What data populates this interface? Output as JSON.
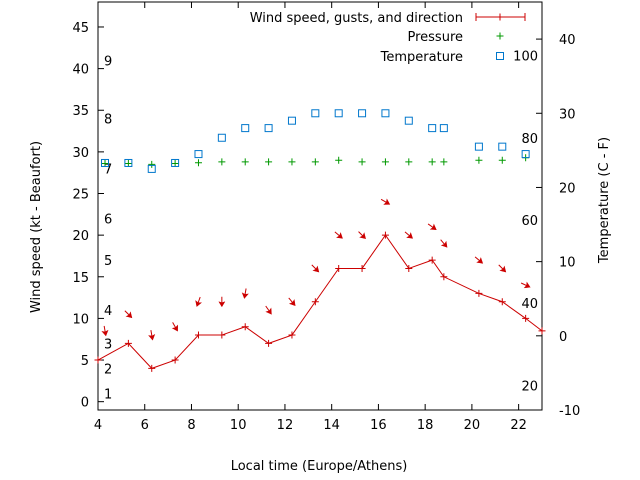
{
  "chart_data": {
    "type": "line",
    "xlabel": "Local time (Europe/Athens)",
    "ylabel_left": "Wind speed (kt - Beaufort)",
    "ylabel_right": "Temperature (C - F)",
    "x_range": [
      4,
      23
    ],
    "x_ticks": [
      4,
      6,
      8,
      10,
      12,
      14,
      16,
      18,
      20,
      22
    ],
    "y_left_range": [
      -1,
      48
    ],
    "y_left_ticks": [
      0,
      5,
      10,
      15,
      20,
      25,
      30,
      35,
      40,
      45
    ],
    "y_right_range": [
      -10,
      45
    ],
    "y_right_ticks": [
      -10,
      0,
      10,
      20,
      30,
      40
    ],
    "beaufort_labels": [
      {
        "label": "1",
        "y": 1
      },
      {
        "label": "2",
        "y": 4
      },
      {
        "label": "3",
        "y": 7
      },
      {
        "label": "4",
        "y": 11
      },
      {
        "label": "5",
        "y": 17
      },
      {
        "label": "6",
        "y": 22
      },
      {
        "label": "7",
        "y": 28
      },
      {
        "label": "8",
        "y": 34
      },
      {
        "label": "9",
        "y": 41
      }
    ],
    "fahrenheit_labels": [
      {
        "label": "20",
        "y": -6.7
      },
      {
        "label": "40",
        "y": 4.4
      },
      {
        "label": "60",
        "y": 15.6
      },
      {
        "label": "80",
        "y": 26.7
      },
      {
        "label": "100",
        "y": 37.8
      }
    ],
    "legend": {
      "wind": "Wind speed, gusts, and direction",
      "pressure": "Pressure",
      "temperature": "Temperature"
    },
    "colors": {
      "wind": "#cc0000",
      "pressure": "#009900",
      "temperature": "#0077cc"
    },
    "series": {
      "wind_speed": {
        "x": [
          4.0,
          5.3,
          6.3,
          7.3,
          8.3,
          9.3,
          10.3,
          11.3,
          12.3,
          13.3,
          14.3,
          15.3,
          16.3,
          17.3,
          18.3,
          18.8,
          20.3,
          21.3,
          22.3,
          23.0
        ],
        "y": [
          5,
          7,
          4,
          5,
          8,
          8,
          9,
          7,
          8,
          12,
          16,
          16,
          20,
          16,
          17,
          15,
          13,
          12,
          10,
          8.5
        ]
      },
      "wind_direction": {
        "x": [
          4.3,
          5.3,
          6.3,
          7.3,
          8.3,
          9.3,
          10.3,
          11.3,
          12.3,
          13.3,
          14.3,
          15.3,
          16.3,
          17.3,
          18.3,
          18.8,
          20.3,
          21.3,
          22.3
        ],
        "y": [
          8.5,
          10.5,
          8.0,
          9.0,
          12.0,
          12.0,
          13.0,
          11.0,
          12.0,
          16.0,
          20.0,
          20.0,
          24.0,
          20.0,
          21.0,
          19.0,
          17.0,
          16.0,
          14.0
        ],
        "angle": [
          80,
          45,
          80,
          60,
          110,
          90,
          100,
          55,
          50,
          45,
          40,
          45,
          30,
          40,
          35,
          50,
          40,
          45,
          25
        ]
      },
      "pressure": {
        "x": [
          4.3,
          5.3,
          6.3,
          7.3,
          8.3,
          9.3,
          10.3,
          11.3,
          12.3,
          13.3,
          14.3,
          15.3,
          16.3,
          17.3,
          18.3,
          18.8,
          20.3,
          21.3,
          22.3
        ],
        "y": [
          28.6,
          28.6,
          28.5,
          28.6,
          28.7,
          28.8,
          28.8,
          28.8,
          28.8,
          28.8,
          29.0,
          28.8,
          28.8,
          28.8,
          28.8,
          28.8,
          29.0,
          29.0,
          29.3
        ]
      },
      "temperature": {
        "x": [
          4.3,
          5.3,
          6.3,
          7.3,
          8.3,
          9.3,
          10.3,
          11.3,
          12.3,
          13.3,
          14.3,
          15.3,
          16.3,
          17.3,
          18.3,
          18.8,
          20.3,
          21.3,
          22.3
        ],
        "y": [
          23.3,
          23.3,
          22.5,
          23.3,
          24.5,
          26.7,
          28.0,
          28.0,
          29.0,
          30.0,
          30.0,
          30.0,
          30.0,
          29.0,
          28.0,
          28.0,
          25.5,
          25.5,
          24.5
        ]
      }
    }
  }
}
